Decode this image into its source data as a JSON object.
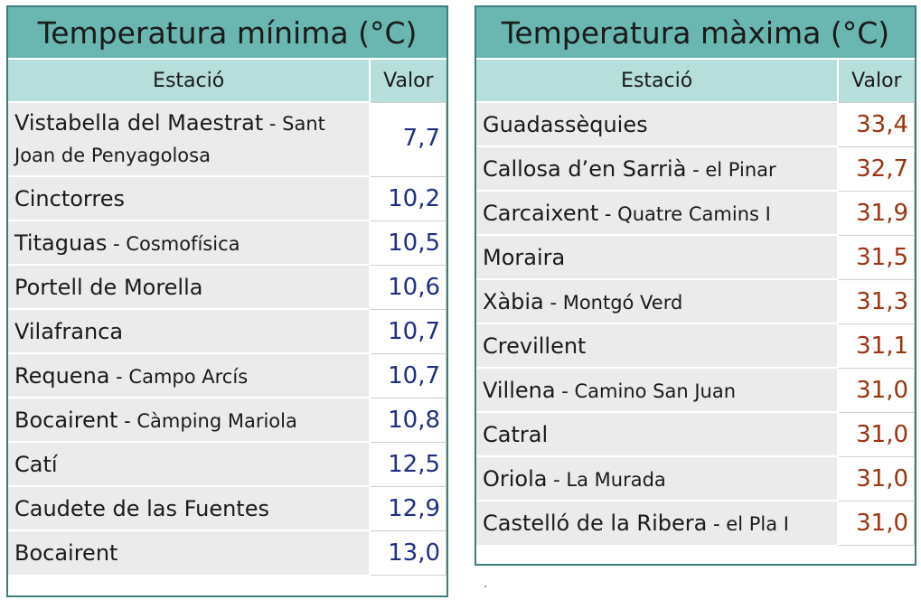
{
  "min_table": {
    "title": "Temperatura mínima (°C)",
    "col_station": "Estació",
    "col_value": "Valor",
    "rows": [
      {
        "station": "Vistabella del Maestrat",
        "sub": " - Sant Joan de Penyagolosa",
        "value": "7,7"
      },
      {
        "station": "Cinctorres",
        "sub": "",
        "value": "10,2"
      },
      {
        "station": "Titaguas",
        "sub": " - Cosmofísica",
        "value": "10,5"
      },
      {
        "station": "Portell de Morella",
        "sub": "",
        "value": "10,6"
      },
      {
        "station": "Vilafranca",
        "sub": "",
        "value": "10,7"
      },
      {
        "station": "Requena",
        "sub": " - Campo Arcís",
        "value": "10,7"
      },
      {
        "station": "Bocairent",
        "sub": " - Càmping Mariola",
        "value": "10,8"
      },
      {
        "station": "Catí",
        "sub": "",
        "value": "12,5"
      },
      {
        "station": "Caudete de las Fuentes",
        "sub": "",
        "value": "12,9"
      },
      {
        "station": "Bocairent",
        "sub": "",
        "value": "13,0"
      }
    ]
  },
  "max_table": {
    "title": "Temperatura màxima (°C)",
    "col_station": "Estació",
    "col_value": "Valor",
    "rows": [
      {
        "station": "Guadassèquies",
        "sub": "",
        "value": "33,4"
      },
      {
        "station": "Callosa d’en Sarrià",
        "sub": " - el Pinar",
        "value": "32,7"
      },
      {
        "station": "Carcaixent",
        "sub": " - Quatre Camins I",
        "value": "31,9"
      },
      {
        "station": "Moraira",
        "sub": "",
        "value": "31,5"
      },
      {
        "station": "Xàbia",
        "sub": " - Montgó Verd",
        "value": "31,3"
      },
      {
        "station": "Crevillent",
        "sub": "",
        "value": "31,1"
      },
      {
        "station": "Villena",
        "sub": " - Camino San Juan",
        "value": "31,0"
      },
      {
        "station": "Catral",
        "sub": "",
        "value": "31,0"
      },
      {
        "station": "Oriola",
        "sub": " - La Murada",
        "value": "31,0"
      },
      {
        "station": "Castelló de la Ribera",
        "sub": " - el Pla I",
        "value": "31,0"
      }
    ]
  },
  "colors": {
    "title_bg": "#6ab7b1",
    "header_bg": "#b6dedb",
    "min_value_color": "#1f2f86",
    "max_value_color": "#9a3412"
  }
}
